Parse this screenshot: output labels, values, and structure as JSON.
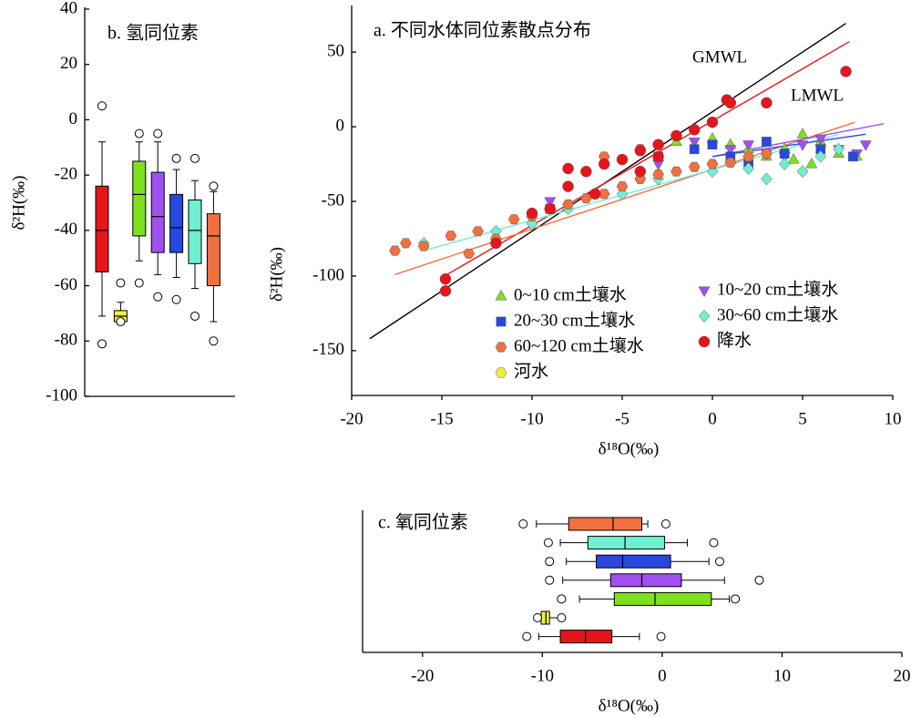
{
  "chart_data": [
    {
      "type": "scatter",
      "title": "a. 不同水体同位素散点分布",
      "xlabel": "δ¹⁸O(‰)",
      "ylabel": "δ²H(‰)",
      "xlim": [
        -20,
        10
      ],
      "xticks": [
        -20,
        -15,
        -10,
        -5,
        0,
        5,
        10
      ],
      "ylim": [
        -180,
        80
      ],
      "yticks": [
        -150,
        -100,
        -50,
        0,
        50
      ],
      "legend": "lower right",
      "series": [
        {
          "name": "0~10 cm土壤水",
          "color": "#7fe020",
          "marker": "triangle",
          "x": [
            -2,
            0,
            1,
            2,
            3,
            4,
            5,
            5.5,
            6,
            7,
            8,
            4.5
          ],
          "values": [
            -10,
            -8,
            -12,
            -15,
            -20,
            -15,
            -5,
            -25,
            -10,
            -18,
            -20,
            -22
          ]
        },
        {
          "name": "10~20 cm土壤水",
          "color": "#a050f0",
          "marker": "triangle-down",
          "x": [
            -1,
            1,
            2,
            3,
            4,
            5,
            6,
            7,
            8,
            8.5,
            -3,
            -9
          ],
          "values": [
            -10,
            -15,
            -12,
            -18,
            -20,
            -12,
            -8,
            -15,
            -18,
            -12,
            -25,
            -50
          ]
        },
        {
          "name": "20~30 cm土壤水",
          "color": "#2848e0",
          "marker": "square",
          "x": [
            -3,
            -1,
            0,
            1,
            2,
            3,
            4,
            6,
            7.8,
            -9
          ],
          "values": [
            -20,
            -15,
            -12,
            -20,
            -25,
            -10,
            -18,
            -15,
            -20,
            -55
          ]
        },
        {
          "name": "30~60 cm土壤水",
          "color": "#70f0d0",
          "marker": "diamond",
          "x": [
            -16,
            -12,
            -10,
            -8,
            -5,
            -3,
            0,
            2,
            4,
            5,
            6,
            7,
            3
          ],
          "values": [
            -78,
            -70,
            -65,
            -55,
            -45,
            -35,
            -30,
            -28,
            -25,
            -30,
            -20,
            -15,
            -35
          ]
        },
        {
          "name": "60~120 cm土壤水",
          "color": "#f07040",
          "marker": "hexagon",
          "x": [
            -17.6,
            -17,
            -16,
            -14.5,
            -13,
            -12,
            -11,
            -10,
            -9,
            -8,
            -7,
            -6,
            -5,
            -4,
            -3,
            -2,
            -1,
            0,
            1,
            2,
            3,
            -13.5,
            -6,
            -4
          ],
          "values": [
            -83,
            -78,
            -80,
            -73,
            -70,
            -75,
            -62,
            -60,
            -55,
            -52,
            -48,
            -45,
            -40,
            -35,
            -32,
            -30,
            -27,
            -25,
            -24,
            -20,
            -18,
            -85,
            -20,
            -15
          ]
        },
        {
          "name": "降水",
          "color": "#e8141c",
          "marker": "circle",
          "x": [
            -14.8,
            -14.8,
            -12,
            -10,
            -8,
            -7,
            -6,
            -5,
            -4,
            -3,
            -2,
            -1,
            0,
            0.8,
            1,
            3,
            7.4,
            -9,
            -6.5,
            -4,
            -3,
            -8
          ],
          "values": [
            -102,
            -110,
            -78,
            -58,
            -40,
            -30,
            -25,
            -22,
            -16,
            -12,
            -6,
            -2,
            3,
            18,
            16,
            16,
            37,
            -55,
            -45,
            -30,
            -20,
            -28
          ]
        },
        {
          "name": "河水",
          "color": "#f0f03c",
          "marker": "hexagon",
          "x": [],
          "values": []
        }
      ],
      "lines": [
        {
          "name": "GMWL",
          "color": "#000000",
          "x": [
            -19,
            7.4
          ],
          "y": [
            -142,
            69.2
          ]
        },
        {
          "name": "LMWL",
          "color": "#e8141c",
          "x": [
            -15,
            7.6
          ],
          "y": [
            -101,
            57
          ]
        },
        {
          "color": "#f07040",
          "x": [
            -17.6,
            7.9
          ],
          "y": [
            -99,
            3
          ]
        },
        {
          "color": "#70f0d0",
          "x": [
            -16,
            7
          ],
          "y": [
            -83,
            -5
          ]
        },
        {
          "color": "#a050f0",
          "x": [
            0,
            9.5
          ],
          "y": [
            -20,
            2
          ]
        },
        {
          "color": "#2848e0",
          "x": [
            0,
            8.5
          ],
          "y": [
            -20,
            -5
          ]
        }
      ]
    },
    {
      "type": "box",
      "title": "b. 氢同位素",
      "ylabel": "δ²H(‰)",
      "ylim": [
        -100,
        40
      ],
      "yticks": [
        -100,
        -80,
        -60,
        -40,
        -20,
        0,
        20,
        40
      ],
      "boxes": [
        {
          "color": "#e8141c",
          "whislo": -71,
          "q1": -55,
          "med": -40,
          "q3": -24,
          "whishi": -8,
          "fliers": [
            5,
            -81
          ]
        },
        {
          "color": "#f0f03c",
          "whislo": -74,
          "q1": -73,
          "med": -71,
          "q3": -69,
          "whishi": -66,
          "fliers": [
            -59,
            -73
          ]
        },
        {
          "color": "#7fe020",
          "whislo": -51,
          "q1": -42,
          "med": -27,
          "q3": -15,
          "whishi": -8,
          "fliers": [
            -5,
            -59
          ]
        },
        {
          "color": "#a050f0",
          "whislo": -56,
          "q1": -48,
          "med": -35,
          "q3": -19,
          "whishi": -8,
          "fliers": [
            -5,
            -64
          ]
        },
        {
          "color": "#2848e0",
          "whislo": -57,
          "q1": -48,
          "med": -39,
          "q3": -27,
          "whishi": -18,
          "fliers": [
            -14,
            -65
          ]
        },
        {
          "color": "#70f0d0",
          "whislo": -61,
          "q1": -52,
          "med": -40,
          "q3": -29,
          "whishi": -22,
          "fliers": [
            -14,
            -71
          ]
        },
        {
          "color": "#f07040",
          "whislo": -73,
          "q1": -60,
          "med": -42,
          "q3": -34,
          "whishi": -26,
          "fliers": [
            -24,
            -80
          ]
        }
      ]
    },
    {
      "type": "box",
      "orientation": "horizontal",
      "title": "c. 氧同位素",
      "xlabel": "δ¹⁸O(‰)",
      "xlim": [
        -25,
        20
      ],
      "xticks": [
        -20,
        -10,
        0,
        10,
        20
      ],
      "boxes": [
        {
          "color": "#f07040",
          "whislo": -10.5,
          "q1": -7.8,
          "med": -4.1,
          "q3": -1.7,
          "whishi": -1.2,
          "fliers": [
            -11.6,
            0.3
          ]
        },
        {
          "color": "#70f0d0",
          "whislo": -8.5,
          "q1": -6.2,
          "med": -3.1,
          "q3": 0.2,
          "whishi": 2.1,
          "fliers": [
            -9.5,
            4.3
          ]
        },
        {
          "color": "#2848e0",
          "whislo": -8.0,
          "q1": -5.5,
          "med": -3.3,
          "q3": 0.7,
          "whishi": 3.9,
          "fliers": [
            -9.4,
            4.8
          ]
        },
        {
          "color": "#a050f0",
          "whislo": -8.3,
          "q1": -4.3,
          "med": -1.7,
          "q3": 1.6,
          "whishi": 5.2,
          "fliers": [
            -9.4,
            8.1
          ]
        },
        {
          "color": "#7fe020",
          "whislo": -6.9,
          "q1": -4.0,
          "med": -0.6,
          "q3": 4.1,
          "whishi": 5.6,
          "fliers": [
            -8.4,
            6.1
          ]
        },
        {
          "color": "#f0f03c",
          "whislo": -10.3,
          "q1": -10.1,
          "med": -9.7,
          "q3": -9.4,
          "whishi": -8.4,
          "fliers": [
            -10.4,
            -8.4
          ]
        },
        {
          "color": "#e8141c",
          "whislo": -10.3,
          "q1": -8.5,
          "med": -6.4,
          "q3": -4.2,
          "whishi": -1.9,
          "fliers": [
            -11.3,
            -0.1
          ]
        }
      ]
    }
  ]
}
